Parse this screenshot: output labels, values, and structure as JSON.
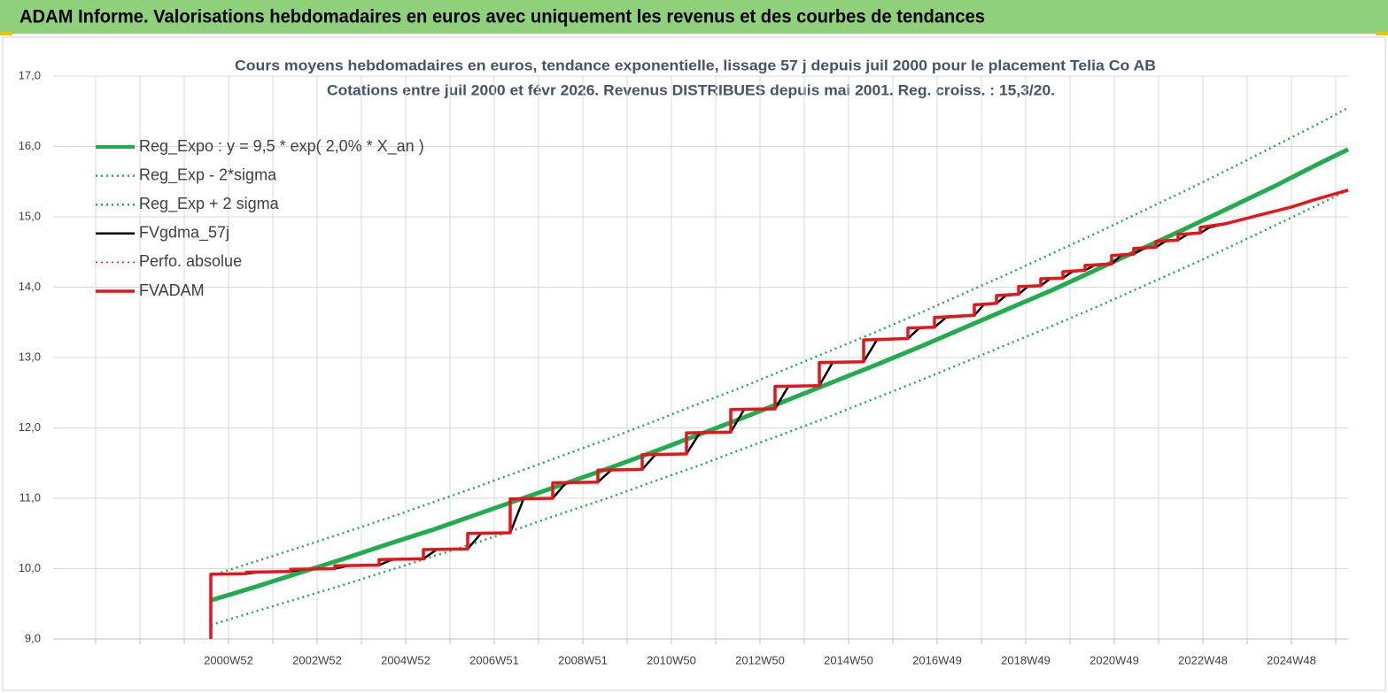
{
  "header": {
    "title": "ADAM Informe. Valorisations hebdomadaires en euros avec uniquement les revenus et des courbes de tendances"
  },
  "chart_data": {
    "type": "line",
    "title": "Cours moyens hebdomadaires en euros, tendance exponentielle, lissage 57 j depuis juil 2000 pour le placement Telia Co AB",
    "subtitle": "Cotations entre juil 2000 et févr 2026. Revenus DISTRIBUES depuis mai 2001. Reg. croiss. : 15,3/20.",
    "xlim": [
      1997.04,
      2026.28
    ],
    "xticks": [
      {
        "value": 2001,
        "label": "2000W52"
      },
      {
        "value": 2003,
        "label": "2002W52"
      },
      {
        "value": 2005,
        "label": "2004W52"
      },
      {
        "value": 2007,
        "label": "2006W51"
      },
      {
        "value": 2009,
        "label": "2008W51"
      },
      {
        "value": 2011,
        "label": "2010W50"
      },
      {
        "value": 2013,
        "label": "2012W50"
      },
      {
        "value": 2015,
        "label": "2014W50"
      },
      {
        "value": 2017,
        "label": "2016W49"
      },
      {
        "value": 2019,
        "label": "2018W49"
      },
      {
        "value": 2021,
        "label": "2020W49"
      },
      {
        "value": 2023,
        "label": "2022W48"
      },
      {
        "value": 2025,
        "label": "2024W48"
      }
    ],
    "minor_xticks": [
      1998,
      1999,
      2000,
      2002,
      2004,
      2006,
      2008,
      2010,
      2012,
      2014,
      2016,
      2018,
      2020,
      2022,
      2024,
      2026
    ],
    "ylim": [
      9,
      17
    ],
    "yticks": [
      {
        "value": 9,
        "label": "9,0"
      },
      {
        "value": 10,
        "label": "10,0"
      },
      {
        "value": 11,
        "label": "11,0"
      },
      {
        "value": 12,
        "label": "12,0"
      },
      {
        "value": 13,
        "label": "13,0"
      },
      {
        "value": 14,
        "label": "14,0"
      },
      {
        "value": 15,
        "label": "15,0"
      },
      {
        "value": 16,
        "label": "16,0"
      },
      {
        "value": 17,
        "label": "17,0"
      }
    ],
    "grid": true,
    "legend": "upper left",
    "series": [
      {
        "name": "Reg_Expo : y = 9,5 * exp( 2,0% *  X_an )",
        "color": "#1fad4e",
        "style": "solid",
        "width": 5,
        "x": [
          2000.6,
          2001.6,
          2002.6,
          2003.6,
          2004.6,
          2005.6,
          2006.6,
          2007.6,
          2008.6,
          2009.6,
          2010.6,
          2011.6,
          2012.6,
          2013.6,
          2014.6,
          2015.6,
          2016.6,
          2017.6,
          2018.6,
          2019.6,
          2020.6,
          2021.6,
          2022.6,
          2023.6,
          2024.6,
          2025.6,
          2026.28
        ],
        "values": [
          9.55,
          9.74,
          9.94,
          10.14,
          10.35,
          10.55,
          10.77,
          10.99,
          11.21,
          11.43,
          11.66,
          11.9,
          12.14,
          12.39,
          12.64,
          12.89,
          13.15,
          13.42,
          13.69,
          13.96,
          14.25,
          14.54,
          14.83,
          15.13,
          15.43,
          15.75,
          15.96
        ]
      },
      {
        "name": "Reg_Exp - 2*sigma",
        "color": "#1fad4e",
        "style": "dotted",
        "width": 2.5,
        "x": [
          2000.6,
          2001.6,
          2002.6,
          2003.6,
          2004.6,
          2005.6,
          2006.6,
          2007.6,
          2008.6,
          2009.6,
          2010.6,
          2011.6,
          2012.6,
          2013.6,
          2014.6,
          2015.6,
          2016.6,
          2017.6,
          2018.6,
          2019.6,
          2020.6,
          2021.6,
          2022.6,
          2023.6,
          2024.6,
          2025.6,
          2026.28
        ],
        "values": [
          9.2,
          9.39,
          9.58,
          9.77,
          9.97,
          10.17,
          10.37,
          10.58,
          10.8,
          11.01,
          11.24,
          11.46,
          11.7,
          11.93,
          12.17,
          12.42,
          12.67,
          12.93,
          13.19,
          13.45,
          13.72,
          14.0,
          14.28,
          14.57,
          14.87,
          15.17,
          15.38
        ]
      },
      {
        "name": "Reg_Exp + 2 sigma",
        "color": "#1fad4e",
        "style": "dotted",
        "width": 2.5,
        "x": [
          2000.6,
          2001.6,
          2002.6,
          2003.6,
          2004.6,
          2005.6,
          2006.6,
          2007.6,
          2008.6,
          2009.6,
          2010.6,
          2011.6,
          2012.6,
          2013.6,
          2014.6,
          2015.6,
          2016.6,
          2017.6,
          2018.6,
          2019.6,
          2020.6,
          2021.6,
          2022.6,
          2023.6,
          2024.6,
          2025.6,
          2026.28
        ],
        "values": [
          9.9,
          10.1,
          10.3,
          10.51,
          10.72,
          10.94,
          11.16,
          11.39,
          11.62,
          11.85,
          12.09,
          12.34,
          12.58,
          12.84,
          13.1,
          13.36,
          13.63,
          13.91,
          14.19,
          14.48,
          14.77,
          15.07,
          15.37,
          15.68,
          16.0,
          16.32,
          16.55
        ]
      },
      {
        "name": "FVgdma_57j",
        "color": "#000000",
        "style": "solid",
        "width": 2.5,
        "x": [
          2000.6,
          2001.4,
          2001.7,
          2002.4,
          2002.7,
          2003.4,
          2003.7,
          2004.4,
          2004.7,
          2005.4,
          2005.7,
          2006.4,
          2006.7,
          2007.36,
          2007.66,
          2008.32,
          2008.62,
          2009.34,
          2009.64,
          2010.34,
          2010.64,
          2011.34,
          2011.64,
          2012.34,
          2012.64,
          2013.34,
          2013.64,
          2014.34,
          2014.64,
          2015.34,
          2015.64,
          2016.34,
          2016.6,
          2016.94,
          2017.2,
          2017.84,
          2018.05,
          2018.34,
          2018.55,
          2018.84,
          2019.05,
          2019.34,
          2019.55,
          2019.84,
          2020.05,
          2020.34,
          2020.55,
          2020.94,
          2021.15,
          2021.44,
          2021.65,
          2021.94,
          2022.15,
          2022.44,
          2022.65,
          2022.94,
          2023.15,
          2023.5,
          2024,
          2024.5,
          2025,
          2025.5,
          2026.28
        ],
        "values": [
          9.92,
          9.93,
          9.95,
          9.96,
          9.99,
          10.0,
          10.04,
          10.05,
          10.13,
          10.14,
          10.27,
          10.28,
          10.5,
          10.51,
          10.99,
          11.0,
          11.22,
          11.23,
          11.4,
          11.41,
          11.62,
          11.63,
          11.93,
          11.94,
          12.26,
          12.27,
          12.59,
          12.6,
          12.93,
          12.94,
          13.25,
          13.27,
          13.42,
          13.43,
          13.57,
          13.6,
          13.75,
          13.77,
          13.88,
          13.9,
          14.01,
          14.02,
          14.12,
          14.13,
          14.22,
          14.24,
          14.31,
          14.33,
          14.45,
          14.47,
          14.55,
          14.57,
          14.65,
          14.67,
          14.75,
          14.77,
          14.85,
          14.9,
          14.98,
          15.06,
          15.14,
          15.24,
          15.38
        ]
      },
      {
        "name": "Perfo. absolue",
        "color": "#e8141a",
        "style": "dotted",
        "width": 1.5,
        "x": [
          2000.6,
          2000.6,
          2001.4,
          2001.4,
          2002.4,
          2002.4,
          2003.4,
          2003.4,
          2004.4,
          2004.4,
          2005.4,
          2005.4,
          2006.4,
          2006.4,
          2007.36,
          2007.36,
          2008.32,
          2008.32,
          2009.34,
          2009.34,
          2010.34,
          2010.34,
          2011.34,
          2011.34,
          2012.34,
          2012.34,
          2013.34,
          2013.34,
          2014.34,
          2014.34,
          2015.34,
          2015.34,
          2016.34,
          2016.34,
          2016.94,
          2016.94,
          2017.84,
          2017.84,
          2018.34,
          2018.34,
          2018.84,
          2018.84,
          2019.34,
          2019.34,
          2019.84,
          2019.84,
          2020.34,
          2020.34,
          2020.94,
          2020.94,
          2021.44,
          2021.44,
          2021.94,
          2021.94,
          2022.44,
          2022.44,
          2022.94,
          2022.94,
          2023.5,
          2024,
          2024.5,
          2025,
          2025.5,
          2026.28
        ],
        "values": [
          9.0,
          9.92,
          9.93,
          9.95,
          9.96,
          9.99,
          10.0,
          10.04,
          10.05,
          10.13,
          10.14,
          10.27,
          10.28,
          10.5,
          10.51,
          10.99,
          11.0,
          11.22,
          11.23,
          11.4,
          11.41,
          11.62,
          11.63,
          11.93,
          11.94,
          12.26,
          12.27,
          12.59,
          12.6,
          12.93,
          12.94,
          13.25,
          13.27,
          13.42,
          13.43,
          13.57,
          13.6,
          13.75,
          13.77,
          13.88,
          13.9,
          14.01,
          14.02,
          14.12,
          14.13,
          14.22,
          14.24,
          14.31,
          14.33,
          14.45,
          14.47,
          14.55,
          14.57,
          14.65,
          14.67,
          14.75,
          14.77,
          14.85,
          14.9,
          14.98,
          15.06,
          15.14,
          15.24,
          15.38
        ]
      },
      {
        "name": "FVADAM",
        "color": "#e8141a",
        "style": "solid",
        "width": 3.5,
        "x": [
          2000.6,
          2000.6,
          2001.4,
          2001.4,
          2002.4,
          2002.4,
          2003.4,
          2003.4,
          2004.4,
          2004.4,
          2005.4,
          2005.4,
          2006.4,
          2006.4,
          2007.36,
          2007.36,
          2008.32,
          2008.32,
          2009.34,
          2009.34,
          2010.34,
          2010.34,
          2011.34,
          2011.34,
          2012.34,
          2012.34,
          2013.34,
          2013.34,
          2014.34,
          2014.34,
          2015.34,
          2015.34,
          2016.34,
          2016.34,
          2016.94,
          2016.94,
          2017.84,
          2017.84,
          2018.34,
          2018.34,
          2018.84,
          2018.84,
          2019.34,
          2019.34,
          2019.84,
          2019.84,
          2020.34,
          2020.34,
          2020.94,
          2020.94,
          2021.44,
          2021.44,
          2021.94,
          2021.94,
          2022.44,
          2022.44,
          2022.94,
          2022.94,
          2023.5,
          2024,
          2024.5,
          2025,
          2025.5,
          2026.28
        ],
        "values": [
          9.0,
          9.92,
          9.93,
          9.95,
          9.96,
          9.99,
          10.0,
          10.04,
          10.05,
          10.13,
          10.14,
          10.27,
          10.28,
          10.5,
          10.51,
          10.99,
          11.0,
          11.22,
          11.23,
          11.4,
          11.41,
          11.62,
          11.63,
          11.93,
          11.94,
          12.26,
          12.27,
          12.59,
          12.6,
          12.93,
          12.94,
          13.25,
          13.27,
          13.42,
          13.43,
          13.57,
          13.6,
          13.75,
          13.77,
          13.88,
          13.9,
          14.01,
          14.02,
          14.12,
          14.13,
          14.22,
          14.24,
          14.31,
          14.33,
          14.45,
          14.47,
          14.55,
          14.57,
          14.65,
          14.67,
          14.75,
          14.77,
          14.85,
          14.9,
          14.98,
          15.06,
          15.14,
          15.24,
          15.38
        ]
      }
    ]
  }
}
